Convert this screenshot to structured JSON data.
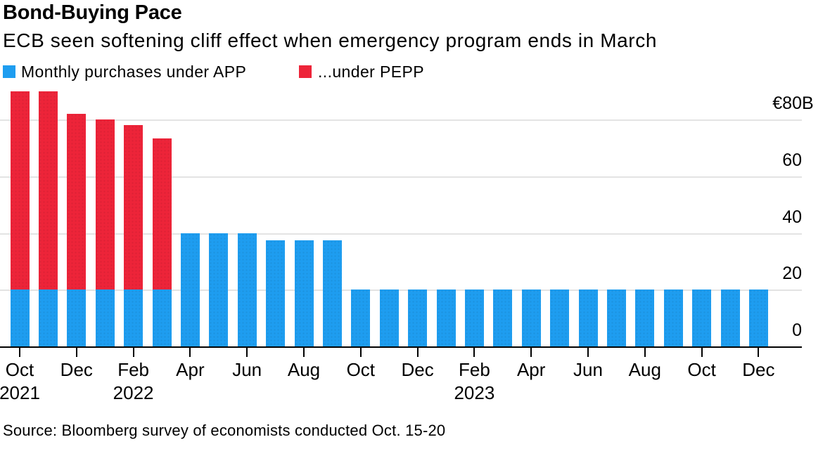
{
  "chart_data": {
    "type": "bar",
    "stacked": true,
    "title": "Bond-Buying Pace",
    "subtitle": "ECB seen softening cliff effect when emergency program ends in March",
    "source": "Source: Bloomberg survey of economists conducted Oct. 15-20",
    "grid": true,
    "legend_position": "top-left",
    "axis_side": "right",
    "ylim": [
      0,
      90
    ],
    "categories": [
      "Oct 2021",
      "Nov 2021",
      "Dec 2021",
      "Jan 2022",
      "Feb 2022",
      "Mar 2022",
      "Apr 2022",
      "May 2022",
      "Jun 2022",
      "Jul 2022",
      "Aug 2022",
      "Sep 2022",
      "Oct 2022",
      "Nov 2022",
      "Dec 2022",
      "Jan 2023",
      "Feb 2023",
      "Mar 2023",
      "Apr 2023",
      "May 2023",
      "Jun 2023",
      "Jul 2023",
      "Aug 2023",
      "Sep 2023",
      "Oct 2023",
      "Nov 2023",
      "Dec 2023"
    ],
    "series": [
      {
        "name": "Monthly purchases under APP",
        "color": "#1E9DF0",
        "values": [
          20,
          20,
          20,
          20,
          20,
          20,
          40,
          40,
          40,
          37.5,
          37.5,
          37.5,
          20,
          20,
          20,
          20,
          20,
          20,
          20,
          20,
          20,
          20,
          20,
          20,
          20,
          20,
          20
        ]
      },
      {
        "name": "...under PEPP",
        "color": "#ED2439",
        "values": [
          70,
          70,
          62,
          60,
          58,
          53.5,
          0,
          0,
          0,
          0,
          0,
          0,
          0,
          0,
          0,
          0,
          0,
          0,
          0,
          0,
          0,
          0,
          0,
          0,
          0,
          0,
          0
        ]
      }
    ],
    "yticks": [
      {
        "value": 0,
        "label": "0",
        "suffix": ""
      },
      {
        "value": 20,
        "label": "20",
        "suffix": ""
      },
      {
        "value": 40,
        "label": "40",
        "suffix": ""
      },
      {
        "value": 60,
        "label": "60",
        "suffix": ""
      },
      {
        "value": 80,
        "label": "€80",
        "suffix": "B"
      }
    ],
    "xticks": [
      {
        "month": "Oct",
        "year": "2021"
      },
      {
        "month": "Dec",
        "year": ""
      },
      {
        "month": "Feb",
        "year": "2022"
      },
      {
        "month": "Apr",
        "year": ""
      },
      {
        "month": "Jun",
        "year": ""
      },
      {
        "month": "Aug",
        "year": ""
      },
      {
        "month": "Oct",
        "year": ""
      },
      {
        "month": "Dec",
        "year": ""
      },
      {
        "month": "Feb",
        "year": "2023"
      },
      {
        "month": "Apr",
        "year": ""
      },
      {
        "month": "Jun",
        "year": ""
      },
      {
        "month": "Aug",
        "year": ""
      },
      {
        "month": "Oct",
        "year": ""
      },
      {
        "month": "Dec",
        "year": ""
      }
    ]
  }
}
